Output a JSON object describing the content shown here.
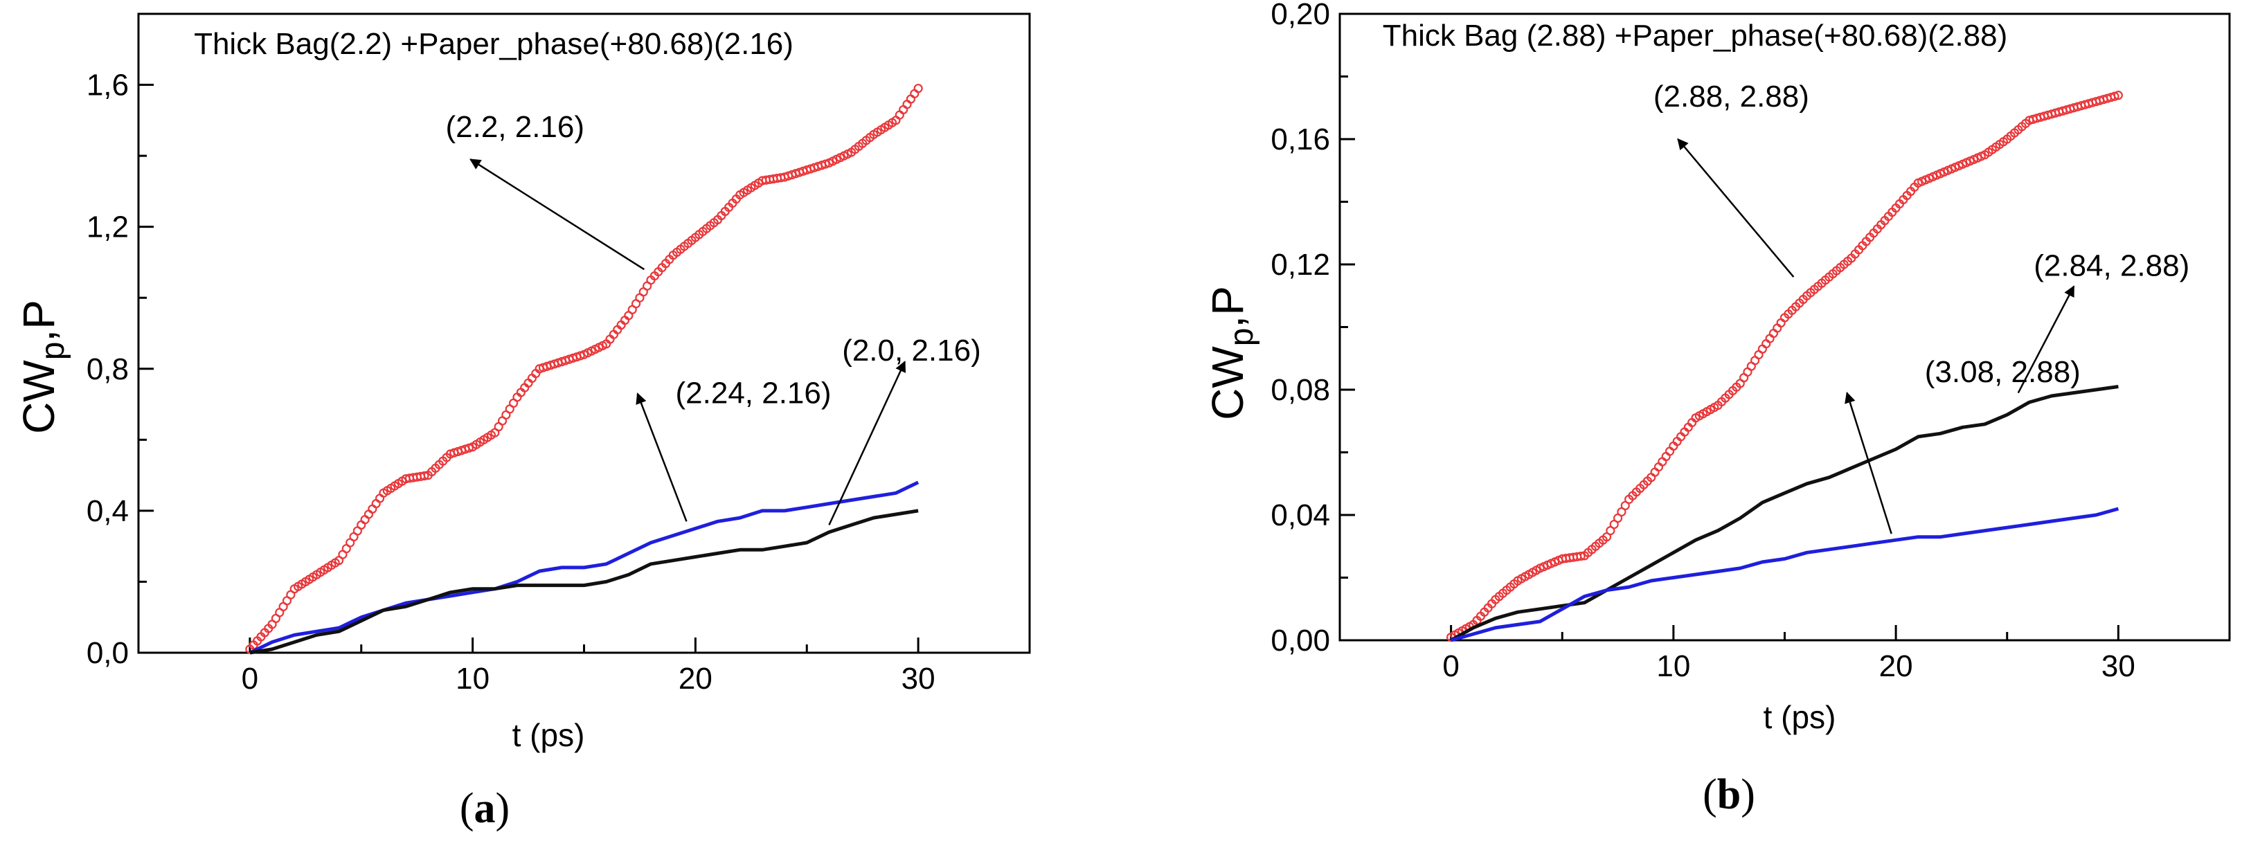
{
  "chart_data": [
    {
      "type": "line",
      "title": "Thick Bag(2.2) +Paper_phase(+80.68)(2.16)",
      "xlabel": "t (ps)",
      "ylabel_main": "CW",
      "ylabel_sub": "p",
      "ylabel_tail": ",P",
      "xlim": [
        -5,
        35
      ],
      "ylim": [
        0,
        1.8
      ],
      "x_ticks": [
        0,
        10,
        20,
        30
      ],
      "x_tick_labels": [
        "0",
        "10",
        "20",
        "30"
      ],
      "y_ticks": [
        0,
        0.4,
        0.8,
        1.2,
        1.6
      ],
      "y_tick_labels": [
        "0,0",
        "0,4",
        "0,8",
        "1,2",
        "1,6"
      ],
      "grid": false,
      "panel_label": {
        "open": "(",
        "letter": "a",
        "close": ")"
      },
      "series": [
        {
          "name": "(2.2, 2.16)",
          "color": "#e8373a",
          "style": "circles",
          "points": [
            [
              0,
              0.01
            ],
            [
              1,
              0.08
            ],
            [
              2,
              0.18
            ],
            [
              3,
              0.22
            ],
            [
              4,
              0.26
            ],
            [
              5,
              0.36
            ],
            [
              6,
              0.45
            ],
            [
              7,
              0.49
            ],
            [
              8,
              0.5
            ],
            [
              9,
              0.56
            ],
            [
              10,
              0.58
            ],
            [
              11,
              0.62
            ],
            [
              12,
              0.72
            ],
            [
              13,
              0.8
            ],
            [
              14,
              0.82
            ],
            [
              15,
              0.84
            ],
            [
              16,
              0.87
            ],
            [
              17,
              0.95
            ],
            [
              18,
              1.05
            ],
            [
              19,
              1.12
            ],
            [
              20,
              1.17
            ],
            [
              21,
              1.22
            ],
            [
              22,
              1.29
            ],
            [
              23,
              1.33
            ],
            [
              24,
              1.34
            ],
            [
              25,
              1.36
            ],
            [
              26,
              1.38
            ],
            [
              27,
              1.41
            ],
            [
              28,
              1.46
            ],
            [
              29,
              1.5
            ],
            [
              30,
              1.59
            ]
          ]
        },
        {
          "name": "(2.24, 2.16)",
          "color": "#1f1fdd",
          "style": "line",
          "points": [
            [
              0,
              0.0
            ],
            [
              1,
              0.03
            ],
            [
              2,
              0.05
            ],
            [
              3,
              0.06
            ],
            [
              4,
              0.07
            ],
            [
              5,
              0.1
            ],
            [
              6,
              0.12
            ],
            [
              7,
              0.14
            ],
            [
              8,
              0.15
            ],
            [
              9,
              0.16
            ],
            [
              10,
              0.17
            ],
            [
              11,
              0.18
            ],
            [
              12,
              0.2
            ],
            [
              13,
              0.23
            ],
            [
              14,
              0.24
            ],
            [
              15,
              0.24
            ],
            [
              16,
              0.25
            ],
            [
              17,
              0.28
            ],
            [
              18,
              0.31
            ],
            [
              19,
              0.33
            ],
            [
              20,
              0.35
            ],
            [
              21,
              0.37
            ],
            [
              22,
              0.38
            ],
            [
              23,
              0.4
            ],
            [
              24,
              0.4
            ],
            [
              25,
              0.41
            ],
            [
              26,
              0.42
            ],
            [
              27,
              0.43
            ],
            [
              28,
              0.44
            ],
            [
              29,
              0.45
            ],
            [
              30,
              0.48
            ]
          ]
        },
        {
          "name": "(2.0, 2.16)",
          "color": "#111111",
          "style": "line",
          "points": [
            [
              0,
              0.0
            ],
            [
              1,
              0.01
            ],
            [
              2,
              0.03
            ],
            [
              3,
              0.05
            ],
            [
              4,
              0.06
            ],
            [
              5,
              0.09
            ],
            [
              6,
              0.12
            ],
            [
              7,
              0.13
            ],
            [
              8,
              0.15
            ],
            [
              9,
              0.17
            ],
            [
              10,
              0.18
            ],
            [
              11,
              0.18
            ],
            [
              12,
              0.19
            ],
            [
              13,
              0.19
            ],
            [
              14,
              0.19
            ],
            [
              15,
              0.19
            ],
            [
              16,
              0.2
            ],
            [
              17,
              0.22
            ],
            [
              18,
              0.25
            ],
            [
              19,
              0.26
            ],
            [
              20,
              0.27
            ],
            [
              21,
              0.28
            ],
            [
              22,
              0.29
            ],
            [
              23,
              0.29
            ],
            [
              24,
              0.3
            ],
            [
              25,
              0.31
            ],
            [
              26,
              0.34
            ],
            [
              27,
              0.36
            ],
            [
              28,
              0.38
            ],
            [
              29,
              0.39
            ],
            [
              30,
              0.4
            ]
          ]
        }
      ],
      "annotations": [
        {
          "text": "(2.2, 2.16)",
          "label_at": [
            11.9,
            1.48
          ],
          "arrow_tail": [
            17.7,
            1.08
          ],
          "arrow_head": [
            9.9,
            1.39
          ]
        },
        {
          "text": "(2.24, 2.16)",
          "label_at": [
            22.6,
            0.73
          ],
          "arrow_tail": [
            19.6,
            0.37
          ],
          "arrow_head": [
            17.4,
            0.73
          ]
        },
        {
          "text": "(2.0, 2.16)",
          "label_at": [
            29.7,
            0.85
          ],
          "arrow_tail": [
            26.0,
            0.36
          ],
          "arrow_head": [
            29.4,
            0.82
          ]
        }
      ]
    },
    {
      "type": "line",
      "title": "Thick Bag (2.88) +Paper_phase(+80.68)(2.88)",
      "xlabel": "t (ps)",
      "ylabel_main": "CW",
      "ylabel_sub": "p",
      "ylabel_tail": ",P",
      "xlim": [
        -5,
        35
      ],
      "ylim": [
        0,
        0.2
      ],
      "x_ticks": [
        0,
        10,
        20,
        30
      ],
      "x_tick_labels": [
        "0",
        "10",
        "20",
        "30"
      ],
      "y_ticks": [
        0,
        0.04,
        0.08,
        0.12,
        0.16,
        0.2
      ],
      "y_tick_labels": [
        "0,00",
        "0,04",
        "0,08",
        "0,12",
        "0,16",
        "0,20"
      ],
      "grid": false,
      "panel_label": {
        "open": "(",
        "letter": "b",
        "close": ")"
      },
      "series": [
        {
          "name": "(2.88, 2.88)",
          "color": "#e8373a",
          "style": "circles",
          "points": [
            [
              0,
              0.001
            ],
            [
              1,
              0.005
            ],
            [
              2,
              0.013
            ],
            [
              3,
              0.019
            ],
            [
              4,
              0.023
            ],
            [
              5,
              0.026
            ],
            [
              6,
              0.027
            ],
            [
              7,
              0.033
            ],
            [
              8,
              0.045
            ],
            [
              9,
              0.052
            ],
            [
              10,
              0.062
            ],
            [
              11,
              0.071
            ],
            [
              12,
              0.075
            ],
            [
              13,
              0.082
            ],
            [
              14,
              0.093
            ],
            [
              15,
              0.103
            ],
            [
              16,
              0.11
            ],
            [
              17,
              0.116
            ],
            [
              18,
              0.122
            ],
            [
              19,
              0.13
            ],
            [
              20,
              0.138
            ],
            [
              21,
              0.146
            ],
            [
              22,
              0.149
            ],
            [
              23,
              0.152
            ],
            [
              24,
              0.155
            ],
            [
              25,
              0.16
            ],
            [
              26,
              0.166
            ],
            [
              27,
              0.168
            ],
            [
              28,
              0.17
            ],
            [
              29,
              0.172
            ],
            [
              30,
              0.174
            ]
          ]
        },
        {
          "name": "(2.84, 2.88)",
          "color": "#111111",
          "style": "line",
          "points": [
            [
              0,
              0.0
            ],
            [
              1,
              0.004
            ],
            [
              2,
              0.007
            ],
            [
              3,
              0.009
            ],
            [
              4,
              0.01
            ],
            [
              5,
              0.011
            ],
            [
              6,
              0.012
            ],
            [
              7,
              0.016
            ],
            [
              8,
              0.02
            ],
            [
              9,
              0.024
            ],
            [
              10,
              0.028
            ],
            [
              11,
              0.032
            ],
            [
              12,
              0.035
            ],
            [
              13,
              0.039
            ],
            [
              14,
              0.044
            ],
            [
              15,
              0.047
            ],
            [
              16,
              0.05
            ],
            [
              17,
              0.052
            ],
            [
              18,
              0.055
            ],
            [
              19,
              0.058
            ],
            [
              20,
              0.061
            ],
            [
              21,
              0.065
            ],
            [
              22,
              0.066
            ],
            [
              23,
              0.068
            ],
            [
              24,
              0.069
            ],
            [
              25,
              0.072
            ],
            [
              26,
              0.076
            ],
            [
              27,
              0.078
            ],
            [
              28,
              0.079
            ],
            [
              29,
              0.08
            ],
            [
              30,
              0.081
            ]
          ]
        },
        {
          "name": "(3.08, 2.88)",
          "color": "#1f1fdd",
          "style": "line",
          "points": [
            [
              0,
              0.0
            ],
            [
              1,
              0.002
            ],
            [
              2,
              0.004
            ],
            [
              3,
              0.005
            ],
            [
              4,
              0.006
            ],
            [
              5,
              0.01
            ],
            [
              6,
              0.014
            ],
            [
              7,
              0.016
            ],
            [
              8,
              0.017
            ],
            [
              9,
              0.019
            ],
            [
              10,
              0.02
            ],
            [
              11,
              0.021
            ],
            [
              12,
              0.022
            ],
            [
              13,
              0.023
            ],
            [
              14,
              0.025
            ],
            [
              15,
              0.026
            ],
            [
              16,
              0.028
            ],
            [
              17,
              0.029
            ],
            [
              18,
              0.03
            ],
            [
              19,
              0.031
            ],
            [
              20,
              0.032
            ],
            [
              21,
              0.033
            ],
            [
              22,
              0.033
            ],
            [
              23,
              0.034
            ],
            [
              24,
              0.035
            ],
            [
              25,
              0.036
            ],
            [
              26,
              0.037
            ],
            [
              27,
              0.038
            ],
            [
              28,
              0.039
            ],
            [
              29,
              0.04
            ],
            [
              30,
              0.042
            ]
          ]
        }
      ],
      "annotations": [
        {
          "text": "(2.88, 2.88)",
          "label_at": [
            12.6,
            0.1735
          ],
          "arrow_tail": [
            15.4,
            0.116
          ],
          "arrow_head": [
            10.2,
            0.16
          ]
        },
        {
          "text": "(2.84, 2.88)",
          "label_at": [
            29.7,
            0.1195
          ],
          "arrow_tail": [
            25.5,
            0.079
          ],
          "arrow_head": [
            28.0,
            0.113
          ]
        },
        {
          "text": "(3.08, 2.88)",
          "label_at": [
            24.8,
            0.0855
          ],
          "arrow_tail": [
            19.8,
            0.034
          ],
          "arrow_head": [
            17.8,
            0.079
          ]
        }
      ]
    }
  ]
}
